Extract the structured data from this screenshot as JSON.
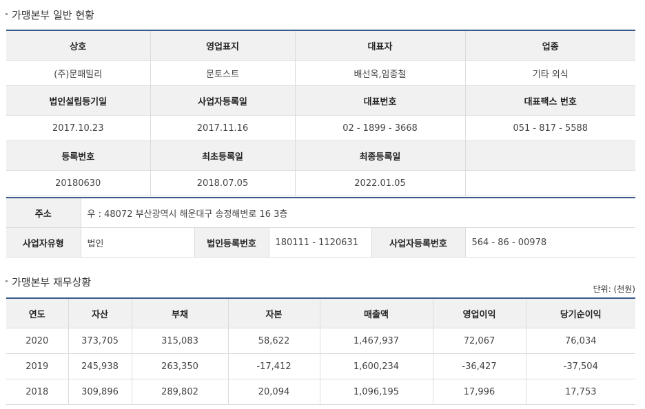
{
  "general": {
    "title": "가맹본부 일반 현황",
    "headers1": [
      "상호",
      "영업표지",
      "대표자",
      "업종"
    ],
    "values1": [
      "(주)문패밀리",
      "문토스트",
      "배선옥,임종철",
      "기타 외식"
    ],
    "headers2": [
      "법인설립등기일",
      "사업자등록일",
      "대표번호",
      "대표팩스 번호"
    ],
    "values2": [
      "2017.10.23",
      "2017.11.16",
      "02 - 1899 - 3668",
      "051 - 817 - 5588"
    ],
    "headers3": [
      "등록번호",
      "최초등록일",
      "최종등록일",
      ""
    ],
    "values3": [
      "20180630",
      "2018.07.05",
      "2022.01.05",
      ""
    ]
  },
  "address": {
    "label": "주소",
    "value": "우 : 48072 부산광역시 해운대구 송정해변로 16 3층",
    "biz_type_label": "사업자유형",
    "biz_type_value": "법인",
    "corp_no_label": "법인등록번호",
    "corp_no_value": "180111 - 1120631",
    "biz_no_label": "사업자등록번호",
    "biz_no_value": "564 - 86 - 00978"
  },
  "finance": {
    "title": "가맹본부 재무상황",
    "unit": "단위: (천원)",
    "headers": [
      "연도",
      "자산",
      "부채",
      "자본",
      "매출액",
      "영업이익",
      "당기순이익"
    ],
    "rows": [
      [
        "2020",
        "373,705",
        "315,083",
        "58,622",
        "1,467,937",
        "72,067",
        "76,034"
      ],
      [
        "2019",
        "245,938",
        "263,350",
        "-17,412",
        "1,600,234",
        "-36,427",
        "-37,504"
      ],
      [
        "2018",
        "309,896",
        "289,802",
        "20,094",
        "1,096,195",
        "17,996",
        "17,753"
      ]
    ]
  }
}
